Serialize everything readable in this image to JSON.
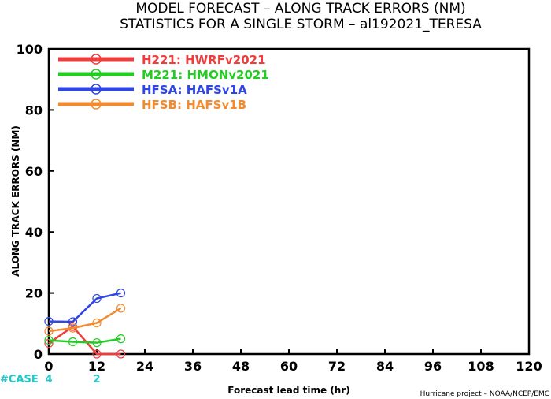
{
  "chart_data": {
    "type": "line",
    "title": "MODEL FORECAST – ALONG TRACK ERRORS (NM)",
    "subtitle": "STATISTICS FOR A SINGLE STORM – al192021_TERESA",
    "xlabel": "Forecast lead time (hr)",
    "ylabel": "ALONG TRACK ERRORS (NM)",
    "xlim": [
      0,
      120
    ],
    "ylim": [
      0,
      100
    ],
    "x_ticks": [
      "0",
      "12",
      "24",
      "36",
      "48",
      "60",
      "72",
      "84",
      "96",
      "108",
      "120"
    ],
    "y_ticks": [
      "0",
      "20",
      "40",
      "60",
      "80",
      "100"
    ],
    "legend_position": "top-left",
    "series": [
      {
        "name": "H221:  HWRFv2021",
        "color": "#f03c3c",
        "x": [
          0,
          6,
          12,
          18
        ],
        "y": [
          3.5,
          9,
          0,
          0
        ]
      },
      {
        "name": "M221:  HMONv2021",
        "color": "#22cc22",
        "x": [
          0,
          6,
          12,
          18
        ],
        "y": [
          4.5,
          4,
          3.7,
          5
        ]
      },
      {
        "name": "HFSA:  HAFSv1A",
        "color": "#2f45e6",
        "x": [
          0,
          6,
          12,
          18
        ],
        "y": [
          10.7,
          10.6,
          18.2,
          20
        ]
      },
      {
        "name": "HFSB:  HAFSv1B",
        "color": "#f28a30",
        "x": [
          0,
          6,
          12,
          18
        ],
        "y": [
          7.5,
          8.5,
          10.2,
          15
        ]
      }
    ],
    "case_label": "#CASE",
    "case_counts": [
      {
        "x": 0,
        "count": "4"
      },
      {
        "x": 12,
        "count": "2"
      }
    ],
    "case_color": "#1fc7c7"
  },
  "credit": "Hurricane project – NOAA/NCEP/EMC"
}
